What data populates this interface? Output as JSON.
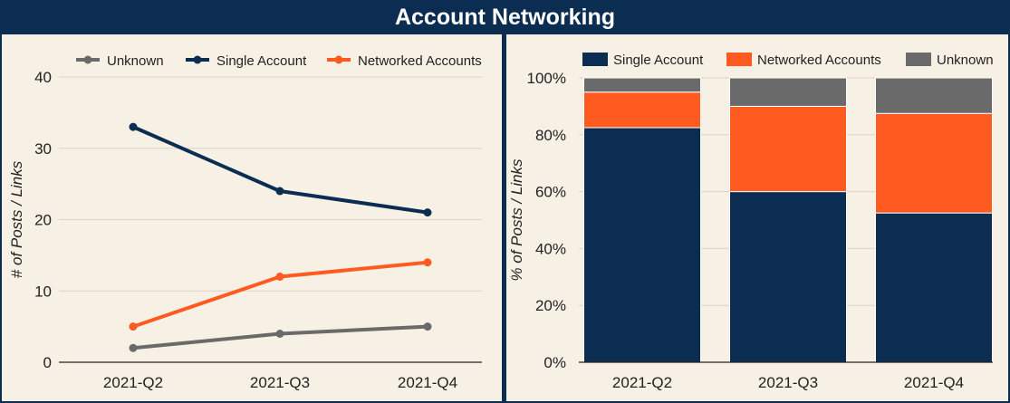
{
  "title": "Account Networking",
  "colors": {
    "single": "#0c2d52",
    "networked": "#ff5a1f",
    "unknown": "#6a6a6a",
    "panel_bg": "#f7f1e5",
    "header_bg": "#0c2d52",
    "grid": "#d9d4ca"
  },
  "chart_data": [
    {
      "type": "line",
      "title": "",
      "xlabel": "",
      "ylabel": "# of Posts / Links",
      "categories": [
        "2021-Q2",
        "2021-Q3",
        "2021-Q4"
      ],
      "ylim": [
        0,
        40
      ],
      "yticks": [
        "0",
        "10",
        "20",
        "30",
        "40"
      ],
      "grid": true,
      "legend_position": "top",
      "series": [
        {
          "name": "Unknown",
          "values": [
            2,
            4,
            5
          ]
        },
        {
          "name": "Single Account",
          "values": [
            33,
            24,
            21
          ]
        },
        {
          "name": "Networked Accounts",
          "values": [
            5,
            12,
            14
          ]
        }
      ]
    },
    {
      "type": "bar",
      "stacked": true,
      "title": "",
      "xlabel": "",
      "ylabel": "% of Posts / Links",
      "categories": [
        "2021-Q2",
        "2021-Q3",
        "2021-Q4"
      ],
      "ylim": [
        0,
        100
      ],
      "yticks": [
        "0%",
        "20%",
        "40%",
        "60%",
        "80%",
        "100%"
      ],
      "grid": true,
      "legend_position": "top",
      "series": [
        {
          "name": "Single Account",
          "values": [
            82.5,
            60,
            52.5
          ]
        },
        {
          "name": "Networked Accounts",
          "values": [
            12.5,
            30,
            35
          ]
        },
        {
          "name": "Unknown",
          "values": [
            5,
            10,
            12.5
          ]
        }
      ]
    }
  ]
}
